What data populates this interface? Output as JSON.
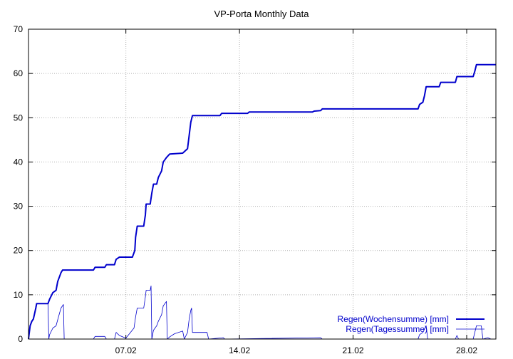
{
  "chart_data": {
    "type": "line",
    "title": "VP-Porta Monthly Data",
    "xlabel": "",
    "ylabel": "",
    "x_range_days": [
      1,
      29.8
    ],
    "ylim": [
      0,
      70
    ],
    "y_ticks": [
      0,
      10,
      20,
      30,
      40,
      50,
      60,
      70
    ],
    "x_ticks": [
      {
        "day": 7,
        "label": "07.02"
      },
      {
        "day": 14,
        "label": "14.02"
      },
      {
        "day": 21,
        "label": "21.02"
      },
      {
        "day": 28,
        "label": "28.02"
      }
    ],
    "grid": true,
    "legend_position": "bottom-right",
    "series": [
      {
        "name": "Regen(Wochensumme) [mm]",
        "color": "#0000cc",
        "style": "thick",
        "points": [
          [
            1.0,
            0
          ],
          [
            1.1,
            3
          ],
          [
            1.2,
            4
          ],
          [
            1.3,
            4.5
          ],
          [
            1.45,
            7
          ],
          [
            1.5,
            8
          ],
          [
            2.2,
            8
          ],
          [
            2.3,
            9
          ],
          [
            2.5,
            10.5
          ],
          [
            2.7,
            11
          ],
          [
            2.8,
            13
          ],
          [
            3.0,
            15
          ],
          [
            3.1,
            15.6
          ],
          [
            5.0,
            15.6
          ],
          [
            5.1,
            16.2
          ],
          [
            5.7,
            16.2
          ],
          [
            5.8,
            16.8
          ],
          [
            6.3,
            16.8
          ],
          [
            6.4,
            18
          ],
          [
            6.6,
            18.5
          ],
          [
            7.4,
            18.5
          ],
          [
            7.55,
            20
          ],
          [
            7.6,
            23
          ],
          [
            7.7,
            25.5
          ],
          [
            8.1,
            25.5
          ],
          [
            8.2,
            28
          ],
          [
            8.25,
            30.5
          ],
          [
            8.5,
            30.5
          ],
          [
            8.6,
            33
          ],
          [
            8.7,
            35
          ],
          [
            8.9,
            35
          ],
          [
            9.0,
            36.5
          ],
          [
            9.2,
            38
          ],
          [
            9.3,
            40
          ],
          [
            9.5,
            41
          ],
          [
            9.7,
            41.8
          ],
          [
            10.5,
            42
          ],
          [
            10.8,
            43
          ],
          [
            10.9,
            46
          ],
          [
            11.0,
            49
          ],
          [
            11.1,
            50.5
          ],
          [
            12.8,
            50.5
          ],
          [
            12.9,
            51
          ],
          [
            14.5,
            51
          ],
          [
            14.6,
            51.3
          ],
          [
            18.5,
            51.3
          ],
          [
            18.6,
            51.5
          ],
          [
            19.0,
            51.6
          ],
          [
            19.1,
            52
          ],
          [
            25.0,
            52
          ],
          [
            25.1,
            53
          ],
          [
            25.3,
            53.5
          ],
          [
            25.4,
            55
          ],
          [
            25.5,
            57
          ],
          [
            26.3,
            57
          ],
          [
            26.4,
            58
          ],
          [
            27.3,
            58
          ],
          [
            27.4,
            59.3
          ],
          [
            28.4,
            59.3
          ],
          [
            28.5,
            60.5
          ],
          [
            28.6,
            62
          ],
          [
            29.8,
            62
          ]
        ]
      },
      {
        "name": "Regen(Tagessumme) [mm]",
        "color": "#0000cc",
        "style": "thin",
        "points": [
          [
            1.0,
            0
          ],
          [
            1.1,
            3
          ],
          [
            1.3,
            4.5
          ],
          [
            1.45,
            7.5
          ],
          [
            1.5,
            8
          ],
          [
            2.2,
            8
          ],
          [
            2.25,
            0
          ],
          [
            2.3,
            1
          ],
          [
            2.5,
            2.5
          ],
          [
            2.7,
            3
          ],
          [
            2.85,
            5
          ],
          [
            3.0,
            7
          ],
          [
            3.15,
            7.8
          ],
          [
            3.2,
            0
          ],
          [
            5.0,
            0
          ],
          [
            5.1,
            0.6
          ],
          [
            5.7,
            0.6
          ],
          [
            5.8,
            0
          ],
          [
            6.3,
            0
          ],
          [
            6.4,
            1.5
          ],
          [
            6.6,
            0.8
          ],
          [
            7.0,
            0.2
          ],
          [
            7.5,
            2.5
          ],
          [
            7.6,
            5
          ],
          [
            7.7,
            7
          ],
          [
            8.1,
            7
          ],
          [
            8.2,
            9.5
          ],
          [
            8.25,
            11
          ],
          [
            8.5,
            11
          ],
          [
            8.55,
            12
          ],
          [
            8.6,
            0
          ],
          [
            8.7,
            2
          ],
          [
            8.9,
            3
          ],
          [
            9.0,
            4
          ],
          [
            9.2,
            5.5
          ],
          [
            9.3,
            7.5
          ],
          [
            9.5,
            8.5
          ],
          [
            9.55,
            0
          ],
          [
            9.7,
            0.5
          ],
          [
            10.0,
            1.2
          ],
          [
            10.5,
            1.8
          ],
          [
            10.6,
            0
          ],
          [
            10.8,
            1.5
          ],
          [
            10.9,
            4.5
          ],
          [
            11.0,
            6.5
          ],
          [
            11.05,
            7
          ],
          [
            11.1,
            1.5
          ],
          [
            12.0,
            1.5
          ],
          [
            12.1,
            0
          ],
          [
            13.0,
            0.3
          ],
          [
            13.1,
            0
          ],
          [
            19.0,
            0.3
          ],
          [
            19.1,
            0
          ],
          [
            25.0,
            0
          ],
          [
            25.1,
            1
          ],
          [
            25.3,
            1.5
          ],
          [
            25.5,
            3
          ],
          [
            25.6,
            0
          ],
          [
            27.3,
            0
          ],
          [
            27.4,
            0.8
          ],
          [
            27.5,
            0
          ],
          [
            28.4,
            0
          ],
          [
            28.5,
            1.5
          ],
          [
            28.6,
            3
          ],
          [
            28.9,
            3
          ],
          [
            29.0,
            0
          ],
          [
            29.3,
            0.3
          ],
          [
            29.5,
            0
          ]
        ]
      }
    ]
  }
}
